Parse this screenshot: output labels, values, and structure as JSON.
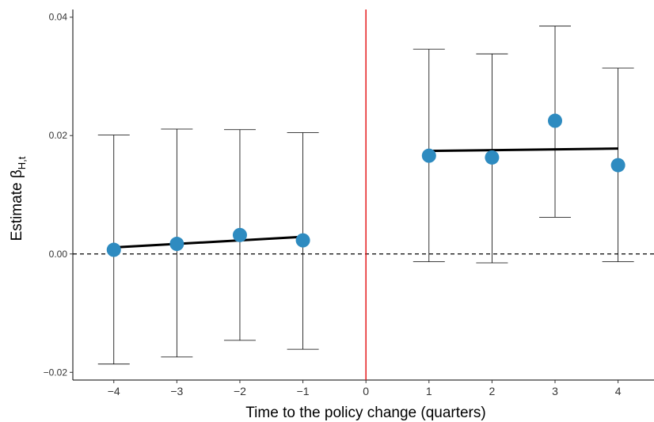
{
  "chart_data": {
    "type": "errorbar",
    "xlabel": "Time to the policy change (quarters)",
    "ylabel": "Estimate β",
    "ylabel_sub": "H,t",
    "x": [
      -4,
      -3,
      -2,
      -1,
      1,
      2,
      3,
      4
    ],
    "values": [
      0.0007,
      0.0017,
      0.0032,
      0.0023,
      0.0166,
      0.0163,
      0.0225,
      0.015
    ],
    "lower": [
      -0.0186,
      -0.0174,
      -0.0146,
      -0.0161,
      -0.0013,
      -0.0015,
      0.0062,
      -0.0013
    ],
    "upper": [
      0.0201,
      0.0211,
      0.021,
      0.0205,
      0.0346,
      0.0338,
      0.0385,
      0.0314
    ],
    "color": "#2e8bc0",
    "fits": [
      {
        "x": [
          -4,
          -1
        ],
        "values": [
          0.0011,
          0.0029
        ]
      },
      {
        "x": [
          1,
          4
        ],
        "values": [
          0.0174,
          0.0178
        ]
      }
    ],
    "vline": 0,
    "vline_color": "#e41a1c",
    "hline": 0,
    "xlim": [
      -4.65,
      4.57
    ],
    "ylim": [
      -0.0213,
      0.0413
    ],
    "xticks": [
      {
        "value": -4,
        "label": "−4"
      },
      {
        "value": -3,
        "label": "−3"
      },
      {
        "value": -2,
        "label": "−2"
      },
      {
        "value": -1,
        "label": "−1"
      },
      0,
      1,
      2,
      3,
      4
    ],
    "yticks": [
      {
        "value": -0.02,
        "label": "−0.02"
      },
      {
        "value": 0,
        "label": "0.00"
      },
      0.02,
      0.04
    ]
  }
}
